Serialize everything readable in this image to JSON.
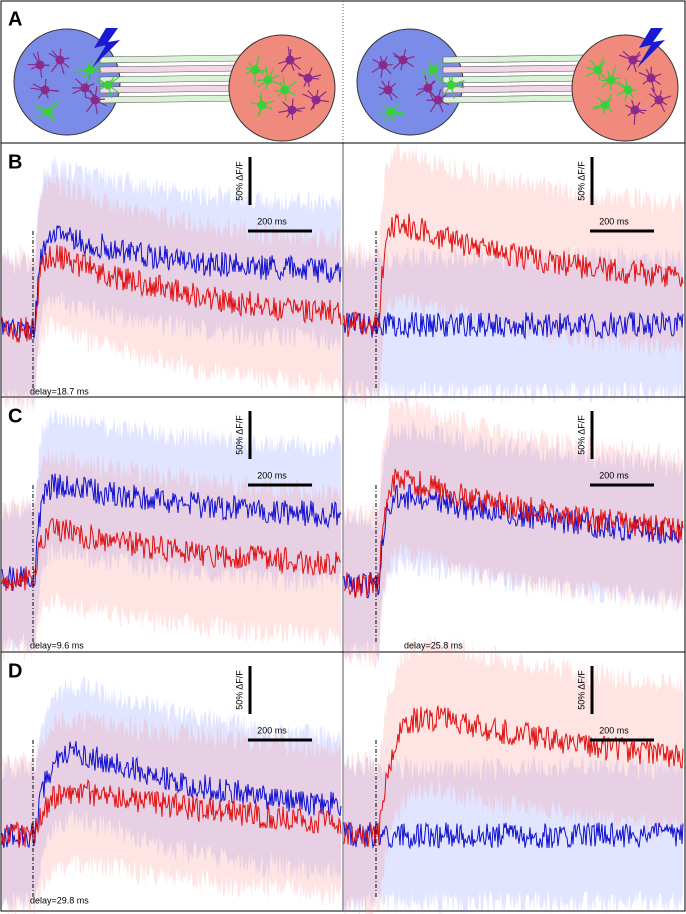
{
  "panels": [
    {
      "label": "A"
    },
    {
      "label": "B",
      "subplots": [
        {
          "scale_y": "50% ΔF/F",
          "scale_x": "200 ms",
          "delay": "delay=18.7 ms"
        },
        {
          "scale_y": "50% ΔF/F",
          "scale_x": "200 ms"
        }
      ]
    },
    {
      "label": "C",
      "subplots": [
        {
          "scale_y": "50% ΔF/F",
          "scale_x": "200 ms",
          "delay": "delay=9.6 ms"
        },
        {
          "scale_y": "50% ΔF/F",
          "scale_x": "200 ms",
          "delay": "delay=25.8 ms"
        }
      ]
    },
    {
      "label": "D",
      "subplots": [
        {
          "scale_y": "50% ΔF/F",
          "scale_x": "200 ms",
          "delay": "delay=29.8 ms"
        },
        {
          "scale_y": "50% ΔF/F",
          "scale_x": "200 ms"
        }
      ]
    }
  ]
}
